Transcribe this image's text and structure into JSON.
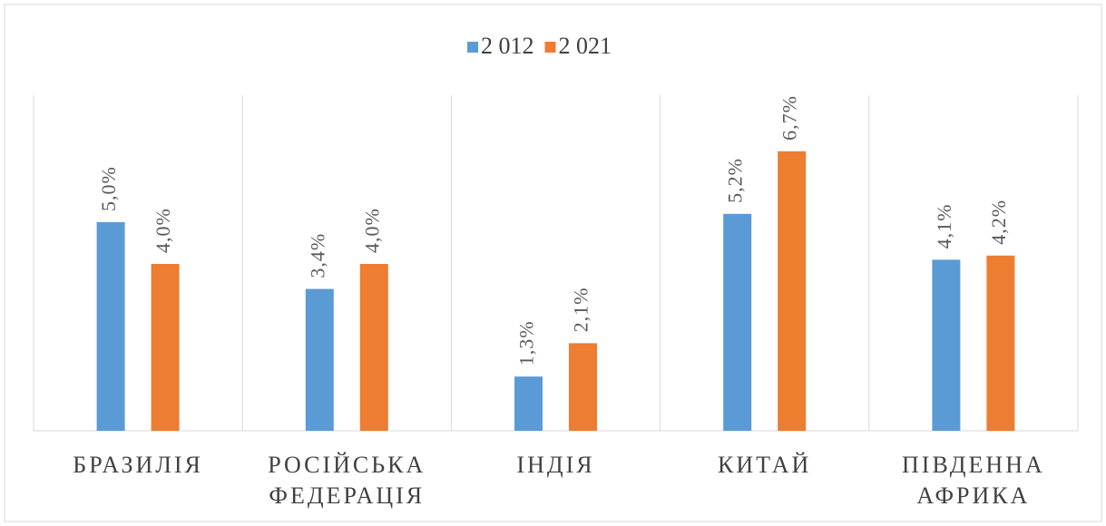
{
  "chart_data": {
    "type": "bar",
    "categories": [
      "БРАЗИЛІЯ",
      "РОСІЙСЬКА ФЕДЕРАЦІЯ",
      "ІНДІЯ",
      "КИТАЙ",
      "ПІВДЕННА АФРИКА"
    ],
    "series": [
      {
        "name": "2 012",
        "color": "#5b9bd5",
        "values": [
          5.0,
          3.4,
          1.3,
          5.2,
          4.1
        ],
        "value_labels": [
          "5,0%",
          "3,4%",
          "1,3%",
          "5,2%",
          "4,1%"
        ]
      },
      {
        "name": "2 021",
        "color": "#ed7d31",
        "values": [
          4.0,
          4.0,
          2.1,
          6.7,
          4.2
        ],
        "value_labels": [
          "4,0%",
          "4,0%",
          "2,1%",
          "6,7%",
          "4,2%"
        ]
      }
    ],
    "legend": "top"
  }
}
